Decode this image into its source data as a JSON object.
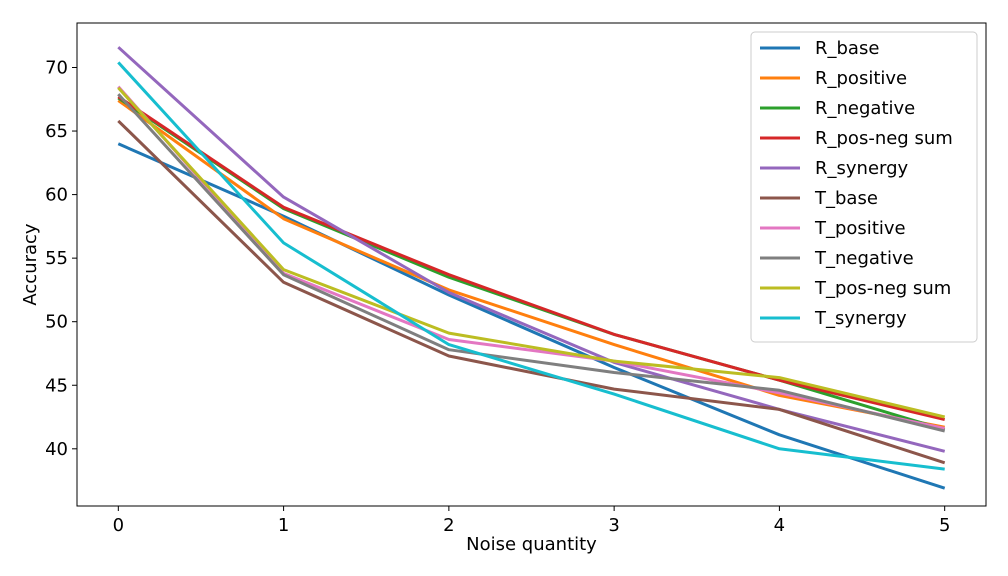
{
  "chart_data": {
    "type": "line",
    "title": "",
    "xlabel": "Noise quantity",
    "ylabel": "Accuracy",
    "x": [
      0,
      1,
      2,
      3,
      4,
      5
    ],
    "xlim": [
      -0.25,
      5.25
    ],
    "ylim": [
      35.5,
      73.5
    ],
    "xticks": [
      0,
      1,
      2,
      3,
      4,
      5
    ],
    "yticks": [
      40,
      45,
      50,
      55,
      60,
      65,
      70
    ],
    "grid": false,
    "legend_position": "top-right",
    "series": [
      {
        "name": "R_base",
        "color": "#1f77b4",
        "values": [
          64.0,
          58.3,
          52.1,
          46.4,
          41.1,
          36.9
        ]
      },
      {
        "name": "R_positive",
        "color": "#ff7f0e",
        "values": [
          67.4,
          58.1,
          52.5,
          48.2,
          44.2,
          41.7
        ]
      },
      {
        "name": "R_negative",
        "color": "#2ca02c",
        "values": [
          67.6,
          58.9,
          53.5,
          49.0,
          45.4,
          41.5
        ]
      },
      {
        "name": "R_pos-neg sum",
        "color": "#d62728",
        "values": [
          67.7,
          59.0,
          53.7,
          49.0,
          45.4,
          42.3
        ]
      },
      {
        "name": "R_synergy",
        "color": "#9467bd",
        "values": [
          71.6,
          59.8,
          52.3,
          46.8,
          43.1,
          39.8
        ]
      },
      {
        "name": "T_base",
        "color": "#8c564b",
        "values": [
          65.8,
          53.1,
          47.3,
          44.7,
          43.1,
          38.9
        ]
      },
      {
        "name": "T_positive",
        "color": "#e377c2",
        "values": [
          68.5,
          53.8,
          48.6,
          46.9,
          44.4,
          41.6
        ]
      },
      {
        "name": "T_negative",
        "color": "#7f7f7f",
        "values": [
          67.9,
          53.7,
          47.8,
          46.0,
          44.6,
          41.4
        ]
      },
      {
        "name": "T_pos-neg sum",
        "color": "#bcbd22",
        "values": [
          68.4,
          54.1,
          49.1,
          46.9,
          45.6,
          42.5
        ]
      },
      {
        "name": "T_synergy",
        "color": "#17becf",
        "values": [
          70.4,
          56.2,
          48.2,
          44.3,
          40.0,
          38.4
        ]
      }
    ]
  }
}
